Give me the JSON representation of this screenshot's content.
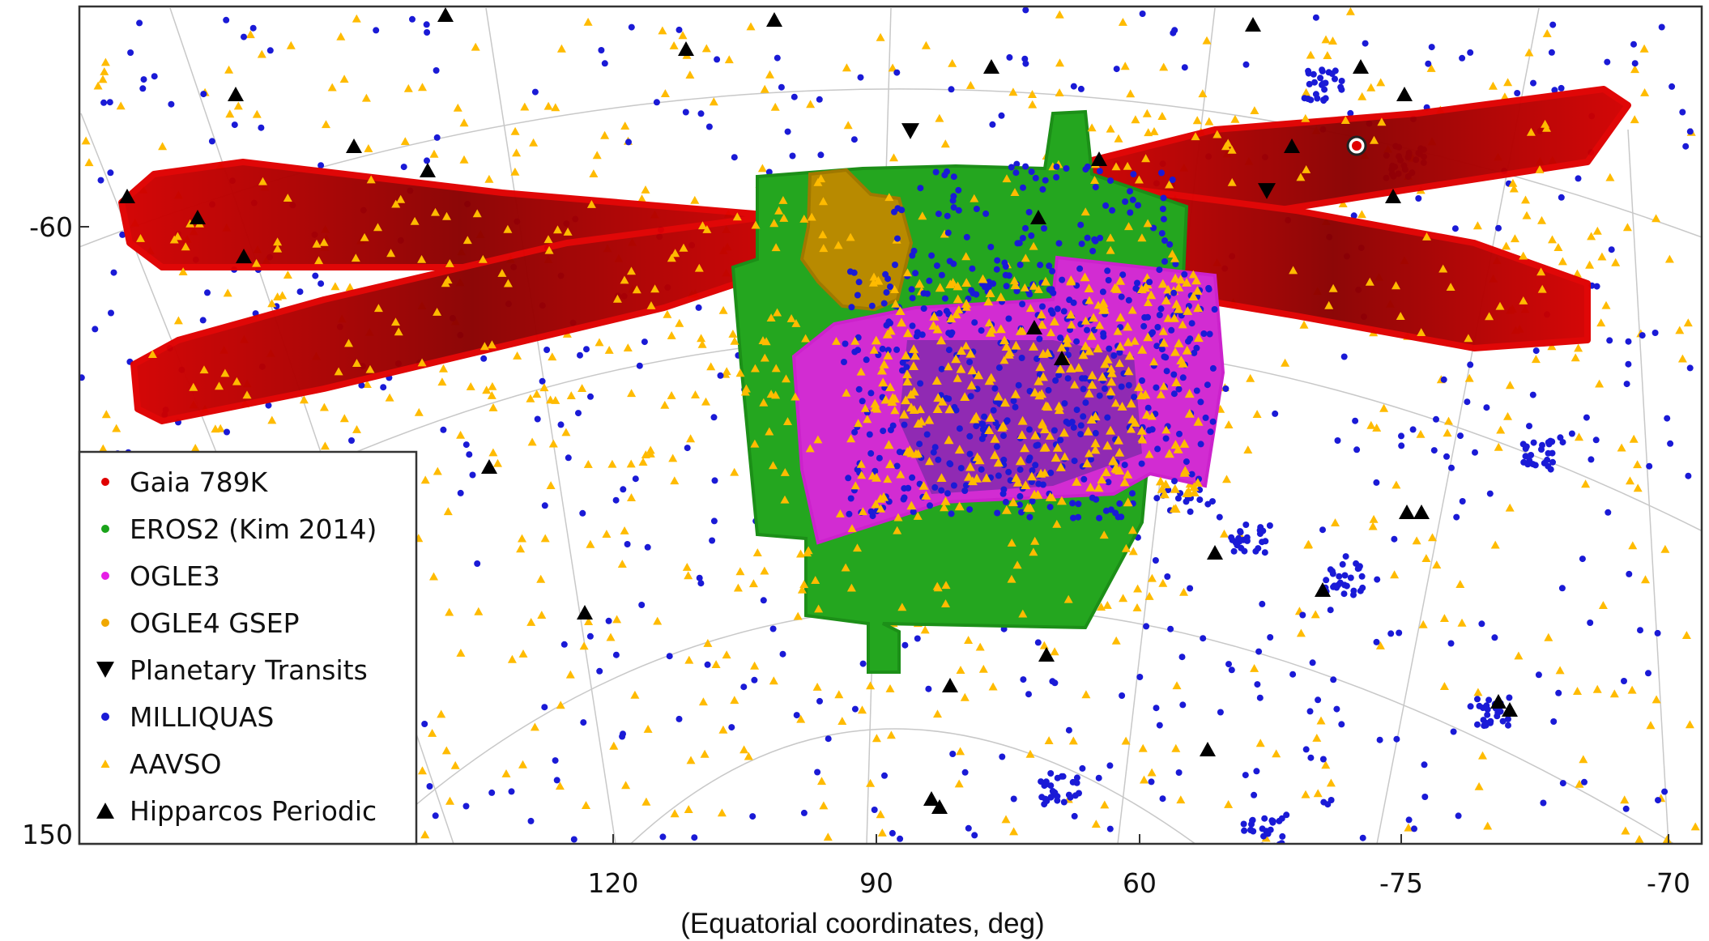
{
  "chart_data": {
    "type": "scatter",
    "xlabel": "(Equatorial coordinates, deg)",
    "x_ticks": [
      "120",
      "90",
      "60",
      "-75",
      "-70"
    ],
    "y_ticks": [
      "-60",
      "150"
    ],
    "grid": true,
    "legend_position": "bottom-left",
    "series": [
      {
        "name": "Gaia 789K",
        "marker": "dot",
        "color": "#e00000"
      },
      {
        "name": "EROS2 (Kim 2014)",
        "marker": "dot",
        "color": "#1aa31a"
      },
      {
        "name": "OGLE3",
        "marker": "dot",
        "color": "#e61ee6"
      },
      {
        "name": "OGLE4 GSEP",
        "marker": "dot",
        "color": "#f0a800"
      },
      {
        "name": "Planetary Transits",
        "marker": "triangle-down",
        "color": "#000000"
      },
      {
        "name": "MILLIQUAS",
        "marker": "dot",
        "color": "#1a1ad6"
      },
      {
        "name": "AAVSO",
        "marker": "triangle-up-small",
        "color": "#ffbb00"
      },
      {
        "name": "Hipparcos Periodic",
        "marker": "triangle-up",
        "color": "#000000"
      }
    ]
  }
}
